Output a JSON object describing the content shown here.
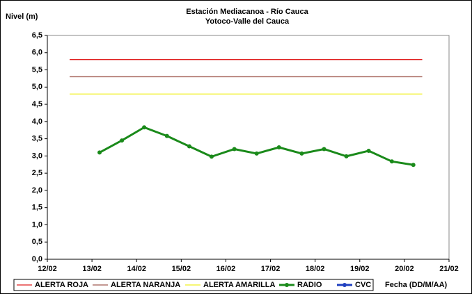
{
  "chart_data": {
    "type": "line",
    "title": "Estación Mediacanoa - Río Cauca",
    "subtitle": "Yotoco-Valle del Cauca",
    "y_label": "Nivel (m)",
    "x_label": "Fecha (DD/M/AA)",
    "xlim": [
      12,
      21
    ],
    "xticks": [
      {
        "value": 12,
        "label": "12/02"
      },
      {
        "value": 13,
        "label": "13/02"
      },
      {
        "value": 14,
        "label": "14/02"
      },
      {
        "value": 15,
        "label": "15/02"
      },
      {
        "value": 16,
        "label": "16/02"
      },
      {
        "value": 17,
        "label": "17/02"
      },
      {
        "value": 18,
        "label": "18/02"
      },
      {
        "value": 19,
        "label": "19/02"
      },
      {
        "value": 20,
        "label": "20/02"
      },
      {
        "value": 21,
        "label": "21/02"
      }
    ],
    "ylim": [
      0,
      6.5
    ],
    "yticks": [
      {
        "value": 0,
        "label": "0,0"
      },
      {
        "value": 0.5,
        "label": "0,5"
      },
      {
        "value": 1,
        "label": "1,0"
      },
      {
        "value": 1.5,
        "label": "1,5"
      },
      {
        "value": 2,
        "label": "2,0"
      },
      {
        "value": 2.5,
        "label": "2,5"
      },
      {
        "value": 3,
        "label": "3,0"
      },
      {
        "value": 3.5,
        "label": "3,5"
      },
      {
        "value": 4,
        "label": "4,0"
      },
      {
        "value": 4.5,
        "label": "4,5"
      },
      {
        "value": 5,
        "label": "5,0"
      },
      {
        "value": 5.5,
        "label": "5,5"
      },
      {
        "value": 6,
        "label": "6,0"
      },
      {
        "value": 6.5,
        "label": "6,5"
      }
    ],
    "grid": false,
    "legend": "bottom",
    "series": [
      {
        "name": "ALERTA ROJA",
        "color": "#e02020",
        "marker": false,
        "x": [
          12.5,
          20.4
        ],
        "values": [
          5.8,
          5.8
        ]
      },
      {
        "name": "ALERTA NARANJA",
        "color": "#a05a50",
        "marker": false,
        "x": [
          12.5,
          20.4
        ],
        "values": [
          5.3,
          5.3
        ]
      },
      {
        "name": "ALERTA AMARILLA",
        "color": "#f0f020",
        "marker": false,
        "x": [
          12.5,
          20.4
        ],
        "values": [
          4.8,
          4.8
        ]
      },
      {
        "name": "RADIO",
        "color": "#1a8a1a",
        "marker": true,
        "x": [
          13.17,
          13.67,
          14.17,
          14.68,
          15.18,
          15.68,
          16.19,
          16.69,
          17.19,
          17.7,
          18.2,
          18.7,
          19.2,
          19.72,
          20.2
        ],
        "values": [
          3.1,
          3.45,
          3.83,
          3.58,
          3.28,
          2.98,
          3.2,
          3.07,
          3.25,
          3.07,
          3.2,
          2.99,
          3.15,
          2.84,
          2.74
        ]
      },
      {
        "name": "CVC",
        "color": "#2040c0",
        "marker": true,
        "x": [],
        "values": []
      }
    ]
  }
}
